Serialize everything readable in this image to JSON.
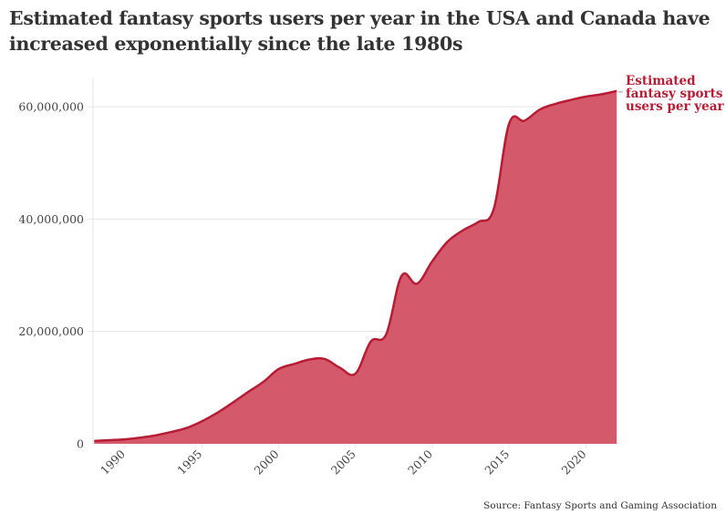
{
  "title": "Estimated fantasy sports users per year in the USA and Canada have increased exponentially since the late 1980s",
  "source": "Source: Fantasy Sports and Gaming Association",
  "colors": {
    "fill": "#d45a6b",
    "line": "#b81c35",
    "grid": "#e6e6e6"
  },
  "chart_data": {
    "type": "area",
    "title": "Estimated fantasy sports users per year in the USA and Canada have increased exponentially since the late 1980s",
    "xlabel": "",
    "ylabel": "",
    "xlim": [
      1988,
      2022
    ],
    "ylim": [
      0,
      65000000
    ],
    "grid": "horizontal",
    "x_ticks": [
      1990,
      1995,
      2000,
      2005,
      2010,
      2015,
      2020
    ],
    "y_ticks": [
      0,
      20000000,
      40000000,
      60000000
    ],
    "y_tick_labels": [
      "0",
      "20,000,000",
      "40,000,000",
      "60,000,000"
    ],
    "series": [
      {
        "name": "Estimated fantasy sports users per year",
        "label_lines": [
          "Estimated",
          "fantasy sports",
          "users per year"
        ],
        "x": [
          1988,
          1989,
          1990,
          1991,
          1992,
          1993,
          1994,
          1995,
          1996,
          1997,
          1998,
          1999,
          2000,
          2001,
          2002,
          2003,
          2004,
          2005,
          2006,
          2007,
          2008,
          2009,
          2010,
          2011,
          2012,
          2013,
          2014,
          2015,
          2016,
          2017,
          2018,
          2019,
          2020,
          2021,
          2022
        ],
        "values": [
          500000,
          650000,
          800000,
          1100000,
          1500000,
          2100000,
          2800000,
          4000000,
          5500000,
          7300000,
          9200000,
          11000000,
          13300000,
          14200000,
          15000000,
          15100000,
          13500000,
          12500000,
          18200000,
          19500000,
          29900000,
          28500000,
          32500000,
          36000000,
          38000000,
          39500000,
          41800000,
          57000000,
          57500000,
          59500000,
          60500000,
          61200000,
          61800000,
          62200000,
          62800000
        ]
      }
    ]
  }
}
